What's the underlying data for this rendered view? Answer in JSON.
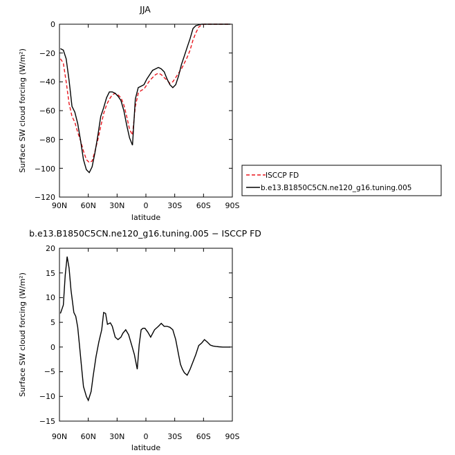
{
  "chart_data": [
    {
      "type": "line",
      "title": "JJA",
      "xlabel": "latitude",
      "ylabel": "Surface SW cloud forcing (W/m²)",
      "xlim": [
        90,
        -90
      ],
      "ylim": [
        -120,
        0
      ],
      "x_ticks": [
        90,
        60,
        30,
        0,
        -30,
        -60,
        -90
      ],
      "x_tick_labels": [
        "90N",
        "60N",
        "30N",
        "0",
        "30S",
        "60S",
        "90S"
      ],
      "y_ticks": [
        0,
        -20,
        -40,
        -60,
        -80,
        -100,
        -120
      ],
      "y_tick_labels": [
        "0",
        "−20",
        "−40",
        "−60",
        "−80",
        "−100",
        "−120"
      ],
      "legend": "right",
      "series": [
        {
          "name": "ISCCP FD",
          "color": "#e8141c",
          "dash": "dashed",
          "x": [
            89,
            86,
            83,
            80,
            77,
            74,
            71,
            68,
            65,
            62,
            59,
            56,
            53,
            50,
            47,
            44,
            41,
            38,
            35,
            32,
            29,
            26,
            23,
            20,
            17,
            14,
            11,
            8,
            5,
            2,
            -1,
            -4,
            -7,
            -10,
            -13,
            -16,
            -19,
            -22,
            -25,
            -28,
            -31,
            -34,
            -37,
            -40,
            -43,
            -46,
            -49,
            -52,
            -55,
            -58,
            -61,
            -64,
            -67,
            -70,
            -73,
            -76,
            -79,
            -82,
            -85,
            -88
          ],
          "y": [
            -24,
            -27,
            -40,
            -55,
            -64,
            -68,
            -75,
            -81,
            -88,
            -94,
            -96,
            -95,
            -88,
            -80,
            -71,
            -62,
            -56,
            -52,
            -49,
            -48,
            -49,
            -51,
            -56,
            -64,
            -73,
            -77,
            -57,
            -48,
            -46,
            -45,
            -42,
            -39,
            -37,
            -35,
            -34,
            -35,
            -37,
            -39,
            -41,
            -40,
            -37,
            -34,
            -31,
            -27,
            -23,
            -18,
            -11,
            -6,
            -2,
            -0.5,
            0,
            0,
            0,
            0,
            0,
            0,
            0,
            0,
            0,
            0
          ]
        },
        {
          "name": "b.e13.B1850C5CN.ne120_g16.tuning.005",
          "color": "#000000",
          "dash": "solid",
          "x": [
            89,
            86,
            83,
            80,
            77,
            74,
            71,
            68,
            65,
            62,
            59,
            56,
            53,
            50,
            47,
            44,
            41,
            38,
            35,
            32,
            29,
            26,
            23,
            20,
            17,
            14,
            11,
            8,
            5,
            2,
            -1,
            -4,
            -7,
            -10,
            -13,
            -16,
            -19,
            -22,
            -25,
            -28,
            -31,
            -34,
            -37,
            -40,
            -43,
            -46,
            -49,
            -52,
            -55,
            -58,
            -61,
            -64,
            -67,
            -70,
            -73,
            -76,
            -79,
            -82,
            -85,
            -88
          ],
          "y": [
            -17,
            -18,
            -24,
            -39,
            -57,
            -61,
            -69,
            -81,
            -94,
            -101,
            -103,
            -99,
            -89,
            -77,
            -64,
            -58,
            -51,
            -47,
            -47,
            -48,
            -50,
            -53,
            -60,
            -70,
            -79,
            -84,
            -52,
            -44,
            -43,
            -42,
            -38,
            -35,
            -32,
            -31,
            -30,
            -31,
            -33,
            -38,
            -42,
            -44,
            -42,
            -36,
            -28,
            -22,
            -16,
            -10,
            -3,
            -1,
            -0.5,
            0,
            0,
            0,
            0,
            0,
            0,
            0,
            0,
            0,
            0,
            0
          ]
        }
      ]
    },
    {
      "type": "line",
      "title": "b.e13.B1850C5CN.ne120_g16.tuning.005 − ISCCP FD",
      "xlabel": "latitude",
      "ylabel": "Surface SW cloud forcing (W/m²)",
      "xlim": [
        90,
        -90
      ],
      "ylim": [
        -15,
        20
      ],
      "x_ticks": [
        90,
        60,
        30,
        0,
        -30,
        -60,
        -90
      ],
      "x_tick_labels": [
        "90N",
        "60N",
        "30N",
        "0",
        "30S",
        "60S",
        "90S"
      ],
      "y_ticks": [
        20,
        15,
        10,
        5,
        0,
        -5,
        -10,
        -15
      ],
      "y_tick_labels": [
        "20",
        "15",
        "10",
        "5",
        "0",
        "−5",
        "−10",
        "−15"
      ],
      "series": [
        {
          "color": "#000000",
          "dash": "solid",
          "x": [
            89,
            86,
            84,
            82,
            80,
            78,
            75,
            73,
            71,
            69,
            67,
            65,
            62,
            60,
            57,
            55,
            52,
            49,
            46,
            44,
            42,
            40,
            37,
            35,
            32,
            29,
            26,
            24,
            21,
            18,
            15,
            12,
            9,
            7,
            5,
            3,
            1,
            -2,
            -5,
            -9,
            -13,
            -16,
            -19,
            -22,
            -25,
            -28,
            -31,
            -34,
            -36,
            -38,
            -40,
            -43,
            -46,
            -49,
            -52,
            -55,
            -58,
            -61,
            -64,
            -67,
            -70,
            -73,
            -76,
            -80,
            -84,
            -88
          ],
          "y": [
            6.8,
            8.5,
            14.5,
            18.3,
            16,
            11.5,
            7,
            6.2,
            4,
            0,
            -4,
            -8,
            -10,
            -10.8,
            -9,
            -6,
            -2,
            1,
            3.5,
            7,
            6.8,
            4.6,
            4.9,
            4.2,
            2,
            1.5,
            2,
            2.8,
            3.5,
            2.5,
            0.5,
            -1.5,
            -4.5,
            0.5,
            3.5,
            3.8,
            3.8,
            3,
            2,
            3.5,
            4.2,
            4.8,
            4.2,
            4.2,
            4.0,
            3.5,
            1.5,
            -1.5,
            -3.5,
            -4.5,
            -5.2,
            -5.7,
            -4.5,
            -3,
            -1.5,
            0.3,
            0.8,
            1.5,
            1,
            0.4,
            0.2,
            0.1,
            0.05,
            0,
            0,
            0
          ]
        }
      ]
    }
  ]
}
